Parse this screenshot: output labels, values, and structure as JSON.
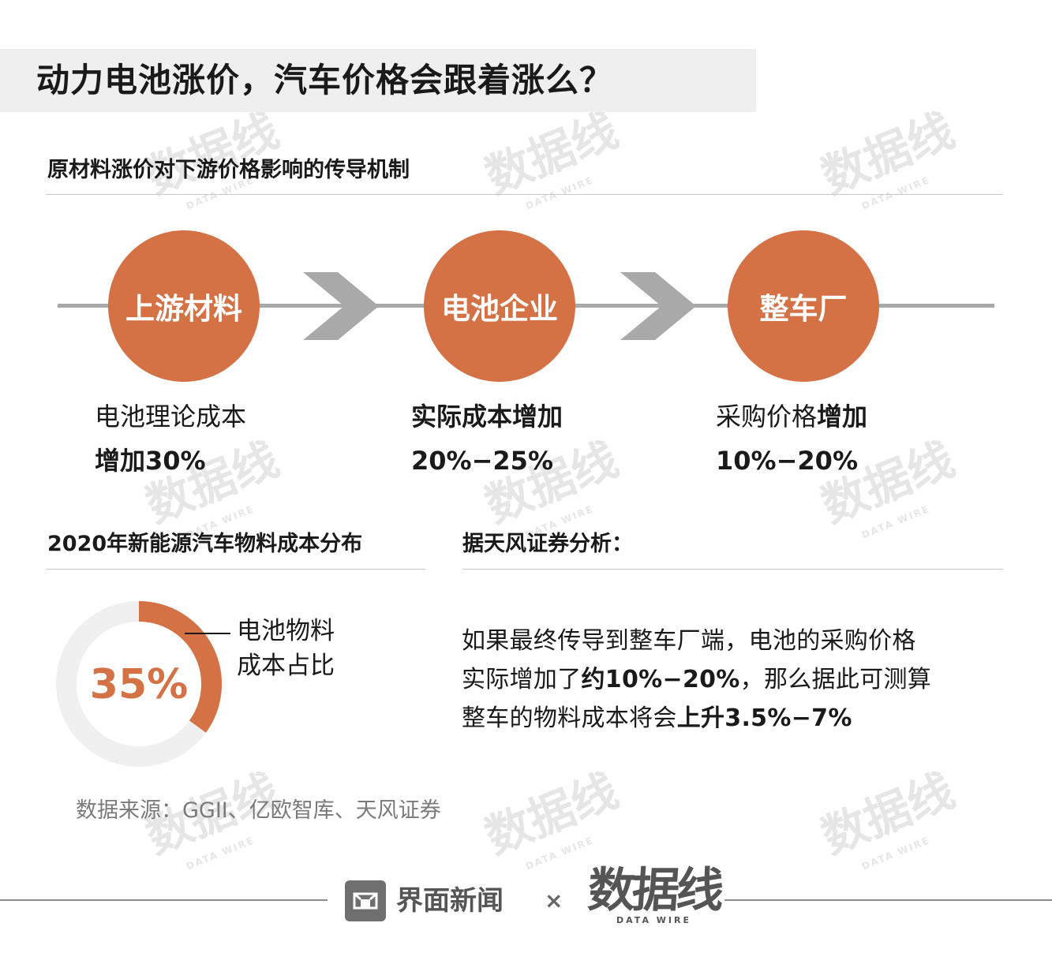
{
  "title": "动力电池涨价，汽车价格会跟着涨么？",
  "mechanism": {
    "heading": "原材料涨价对下游价格影响的传导机制",
    "stages": [
      {
        "node": "上游材料",
        "line1": "电池理论成本",
        "line2": "增加30%"
      },
      {
        "node": "电池企业",
        "line1": "实际成本增加",
        "line2": "20%−25%"
      },
      {
        "node": "整车厂",
        "line1_prefix": "采购价格",
        "line1_bold": "增加",
        "line2": "10%−20%"
      }
    ]
  },
  "cost_distribution": {
    "heading": "2020年新能源汽车物料成本分布",
    "value_label": "35%",
    "share_pct": 35,
    "label_line1": "电池物料",
    "label_line2": "成本占比"
  },
  "analysis": {
    "heading": "据天风证券分析：",
    "line1": "如果最终传导到整车厂端，电池的采购价格",
    "line2_prefix": "实际增加了",
    "line2_bold": "约10%−20%",
    "line2_suffix": "，那么据此可测算",
    "line3_prefix": "整车的物料成本将会",
    "line3_bold": "上升3.5%−7%"
  },
  "source": "数据来源：GGII、亿欧智库、天风证券",
  "footer": {
    "brand": "界面新闻",
    "times": "×",
    "partner_logo": "数据线",
    "partner_tagline": "DATA WIRE"
  },
  "colors": {
    "accent": "#d47145",
    "chevron": "#a9a9a9",
    "title_bg": "#efefef",
    "track": "#f0f0f0"
  }
}
